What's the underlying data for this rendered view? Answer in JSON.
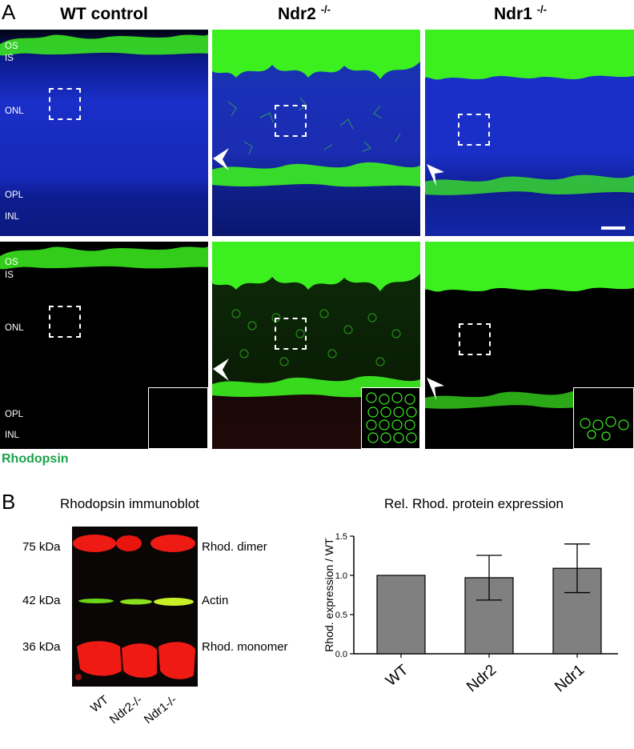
{
  "panel_a": {
    "letter": "A",
    "columns": [
      {
        "title": "WT control",
        "superscript": ""
      },
      {
        "title": "Ndr2",
        "superscript": "-/-"
      },
      {
        "title": "Ndr1",
        "superscript": "-/-"
      }
    ],
    "layer_labels_top": [
      "OS",
      "IS",
      "ONL",
      "OPL",
      "INL"
    ],
    "layer_labels_bottom": [
      "OS",
      "IS",
      "ONL",
      "OPL",
      "INL"
    ],
    "stain_label": "Rhodopsin",
    "colors": {
      "nuclei": "#1a2fc8",
      "rhodopsin": "#3cf020",
      "stain_label": "#1aa34a"
    }
  },
  "panel_b": {
    "letter": "B",
    "blot_title": "Rhodopsin immunoblot",
    "mw_markers": [
      "75 kDa",
      "42 kDa",
      "36 kDa"
    ],
    "band_labels": [
      "Rhod. dimer",
      "Actin",
      "Rhod. monomer"
    ],
    "lanes": [
      "WT",
      "Ndr2-/-",
      "Ndr1-/-"
    ],
    "chart_title": "Rel. Rhod. protein expression"
  },
  "chart_data": {
    "type": "bar",
    "title": "Rel. Rhod. protein expression",
    "ylabel": "Rhod. expression / WT",
    "xlabel": "",
    "categories": [
      "WT",
      "Ndr2",
      "Ndr1"
    ],
    "values": [
      1.0,
      0.97,
      1.09
    ],
    "error": [
      0.0,
      0.285,
      0.31
    ],
    "ylim": [
      0,
      1.5
    ],
    "yticks": [
      "0.0",
      "0.5",
      "1.0",
      "1.5"
    ],
    "bar_color": "#808080",
    "grid": false
  }
}
